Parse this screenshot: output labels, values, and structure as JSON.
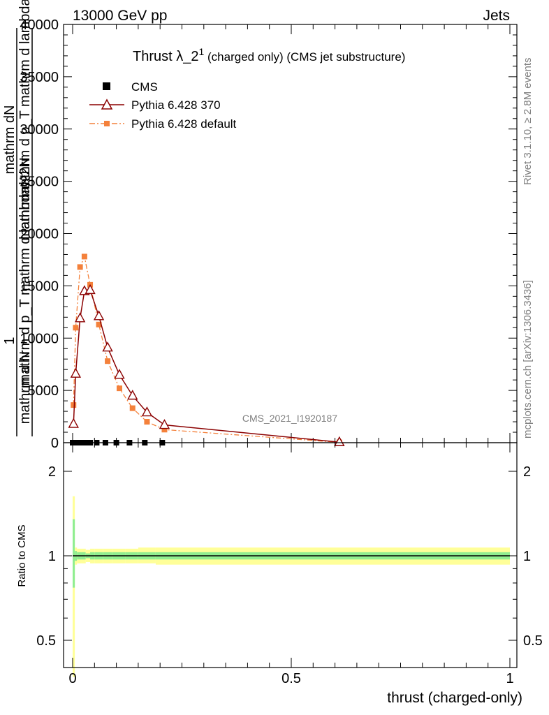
{
  "header": {
    "left": "13000 GeV pp",
    "right": "Jets"
  },
  "side_labels": {
    "rivet": "Rivet 3.1.10, ≥ 2.8M events",
    "mcplots": "mcplots.cern.ch [arXiv:1306.3436]"
  },
  "watermark": "CMS_2021_I1920187",
  "colors": {
    "pythia370": "#8b0000",
    "pythia_default": "#f4813b",
    "cms": "#000000",
    "band_inner": "#90ee90",
    "band_outer": "#ffff99"
  },
  "chart_data": [
    {
      "type": "line",
      "panel": "main",
      "title": "Thrust λ_2¹ (charged only) (CMS jet substructure)",
      "title_main": "Thrust λ_2",
      "title_sup": "1",
      "title_rest": " (charged only) (CMS jet substructure)",
      "ylabel_lines": [
        "1",
        "mathrm d N",
        "mathrm d p_T mathrm d lambda",
        "mathrm d^2N",
        "mathrm d p_T mathrm d lambda",
        "mathrm dN"
      ],
      "ylim": [
        0,
        40000
      ],
      "xlim": [
        -0.02,
        1.0
      ],
      "y_ticks": [
        0,
        5000,
        10000,
        15000,
        20000,
        25000,
        30000,
        35000,
        40000
      ],
      "y_tick_labels": [
        "0",
        "5000",
        "10000",
        "15000",
        "20000",
        "25000",
        "30000",
        "35000",
        "40000"
      ],
      "legend_placement": "top-left",
      "series": [
        {
          "name": "CMS",
          "style": "square-markers",
          "x": [
            0.0,
            0.01,
            0.02,
            0.03,
            0.04,
            0.055,
            0.075,
            0.1,
            0.13,
            0.165,
            0.205
          ],
          "y": [
            0,
            0,
            0,
            0,
            0,
            0,
            0,
            0,
            0,
            0,
            0
          ]
        },
        {
          "name": "Pythia 6.428 370",
          "style": "solid-triangles",
          "x": [
            0.002,
            0.007,
            0.017,
            0.027,
            0.04,
            0.06,
            0.08,
            0.107,
            0.137,
            0.17,
            0.21,
            0.61
          ],
          "y": [
            1800,
            6600,
            11900,
            14500,
            14600,
            12100,
            9100,
            6500,
            4500,
            2900,
            1700,
            50
          ]
        },
        {
          "name": "Pythia 6.428 default",
          "style": "dashdot-squares",
          "x": [
            0.002,
            0.007,
            0.017,
            0.027,
            0.04,
            0.06,
            0.08,
            0.107,
            0.137,
            0.17,
            0.21,
            0.61
          ],
          "y": [
            3600,
            11000,
            16800,
            17800,
            15100,
            11300,
            7800,
            5200,
            3300,
            2000,
            1250,
            30
          ]
        }
      ]
    },
    {
      "type": "area",
      "panel": "ratio",
      "ylabel": "Ratio to CMS",
      "xlabel": "thrust (charged-only)",
      "ylim": [
        0.4,
        2.3
      ],
      "y_ticks": [
        0.5,
        1,
        2
      ],
      "y_tick_labels": [
        "0.5",
        "1",
        "2"
      ],
      "x_ticks": [
        0,
        0.5,
        1
      ],
      "x_tick_labels": [
        "0",
        "0.5",
        "1"
      ],
      "bins": [
        0.0,
        0.005,
        0.01,
        0.02,
        0.03,
        0.04,
        0.05,
        0.07,
        0.09,
        0.12,
        0.15,
        0.19,
        0.23,
        1.0
      ],
      "inner_low": [
        0.77,
        0.96,
        0.97,
        0.97,
        0.98,
        0.97,
        0.97,
        0.97,
        0.97,
        0.97,
        0.97,
        0.97,
        0.97
      ],
      "inner_high": [
        1.35,
        1.04,
        1.03,
        1.03,
        1.02,
        1.03,
        1.03,
        1.03,
        1.03,
        1.03,
        1.03,
        1.03,
        1.03
      ],
      "outer_low": [
        0.37,
        0.93,
        0.94,
        0.94,
        0.95,
        0.94,
        0.94,
        0.94,
        0.94,
        0.94,
        0.94,
        0.93,
        0.93
      ],
      "outer_high": [
        1.63,
        1.07,
        1.06,
        1.06,
        1.05,
        1.06,
        1.06,
        1.06,
        1.06,
        1.06,
        1.07,
        1.07,
        1.07
      ],
      "reference_line": 1
    }
  ]
}
